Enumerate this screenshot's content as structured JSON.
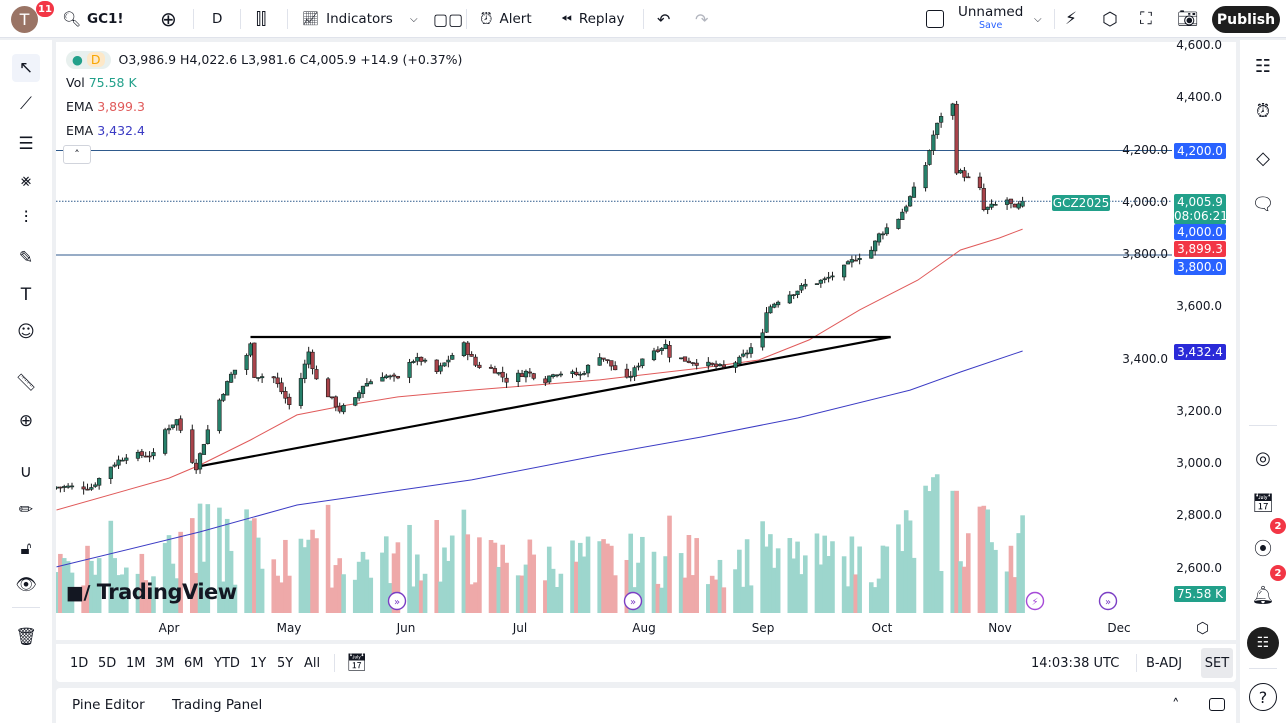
{
  "topbar": {
    "avatar_letter": "T",
    "avatar_badge": "11",
    "symbol": "GC1!",
    "interval": "D",
    "indicators_label": "Indicators",
    "alert_label": "Alert",
    "replay_label": "Replay",
    "layout_name": "Unnamed",
    "save_label": "Save",
    "publish_label": "Publish"
  },
  "legend": {
    "interval": "D",
    "ohlc": "O3,986.9 H4,022.6 L3,981.6 C4,005.9 +14.9 (+0.37%)",
    "vol_label": "Vol",
    "vol_value": "75.58 K",
    "ema1_label": "EMA",
    "ema1_value": "3,899.3",
    "ema2_label": "EMA",
    "ema2_value": "3,432.4"
  },
  "colors": {
    "up": "#26806a",
    "down": "#a8434a",
    "vol_up": "#9dd6cd",
    "vol_down": "#eea9a9",
    "ema_fast": "#e05a5a",
    "ema_slow": "#3b3bc4",
    "hline": "#2f5a8c",
    "accent_blue": "#2962ff",
    "price_teal": "#22a08a"
  },
  "price_axis": {
    "ticks": [
      "4,600.0",
      "4,400.0",
      "4,200.0",
      "4,000.0",
      "3,800.0",
      "3,600.0",
      "3,400.0",
      "3,200.0",
      "3,000.0",
      "2,800.0",
      "2,600.0"
    ],
    "labels": {
      "symbol_tag": "GCZ2025",
      "last_price": "4,005.9",
      "countdown": "08:06:21",
      "level_4200": "4,200.0",
      "level_4000": "4,000.0",
      "ema_fast": "3,899.3",
      "level_3800": "3,800.0",
      "ema_slow": "3,432.4",
      "volume": "75.58 K"
    }
  },
  "time_axis": {
    "months": [
      "Apr",
      "May",
      "Jun",
      "Jul",
      "Aug",
      "Sep",
      "Oct",
      "Nov",
      "Dec"
    ]
  },
  "chart_data": {
    "type": "candlestick",
    "symbol": "GC1!",
    "last_candle": {
      "open": 3986.9,
      "high": 4022.6,
      "low": 3981.6,
      "close": 4005.9
    },
    "close_path": [
      [
        "2025-03-03",
        2912
      ],
      [
        "2025-03-12",
        2912
      ],
      [
        "2025-03-17",
        2992
      ],
      [
        "2025-03-21",
        3034
      ],
      [
        "2025-03-28",
        3034
      ],
      [
        "2025-03-31",
        3130
      ],
      [
        "2025-04-03",
        3168
      ],
      [
        "2025-04-07",
        3015
      ],
      [
        "2025-04-08",
        2989
      ],
      [
        "2025-04-11",
        3130
      ],
      [
        "2025-04-14",
        3245
      ],
      [
        "2025-04-17",
        3341
      ],
      [
        "2025-04-21",
        3417
      ],
      [
        "2025-04-22",
        3455
      ],
      [
        "2025-04-23",
        3341
      ],
      [
        "2025-04-28",
        3329
      ],
      [
        "2025-05-02",
        3226
      ],
      [
        "2025-05-05",
        3329
      ],
      [
        "2025-05-07",
        3429
      ],
      [
        "2025-05-09",
        3322
      ],
      [
        "2025-05-13",
        3245
      ],
      [
        "2025-05-15",
        3207
      ],
      [
        "2025-05-19",
        3245
      ],
      [
        "2025-05-21",
        3302
      ],
      [
        "2025-05-26",
        3341
      ],
      [
        "2025-05-30",
        3322
      ],
      [
        "2025-06-02",
        3398
      ],
      [
        "2025-06-05",
        3398
      ],
      [
        "2025-06-09",
        3352
      ],
      [
        "2025-06-13",
        3417
      ],
      [
        "2025-06-16",
        3455
      ],
      [
        "2025-06-19",
        3379
      ],
      [
        "2025-06-24",
        3360
      ],
      [
        "2025-06-27",
        3321
      ],
      [
        "2025-07-02",
        3352
      ],
      [
        "2025-07-07",
        3321
      ],
      [
        "2025-07-09",
        3352
      ],
      [
        "2025-07-16",
        3341
      ],
      [
        "2025-07-21",
        3417
      ],
      [
        "2025-07-23",
        3390
      ],
      [
        "2025-07-28",
        3321
      ],
      [
        "2025-07-30",
        3360
      ],
      [
        "2025-08-01",
        3406
      ],
      [
        "2025-08-04",
        3436
      ],
      [
        "2025-08-07",
        3455
      ],
      [
        "2025-08-08",
        3417
      ],
      [
        "2025-08-12",
        3398
      ],
      [
        "2025-08-18",
        3379
      ],
      [
        "2025-08-22",
        3367
      ],
      [
        "2025-08-26",
        3398
      ],
      [
        "2025-08-29",
        3444
      ],
      [
        "2025-09-01",
        3494
      ],
      [
        "2025-09-02",
        3590
      ],
      [
        "2025-09-05",
        3628
      ],
      [
        "2025-09-10",
        3666
      ],
      [
        "2025-09-12",
        3685
      ],
      [
        "2025-09-17",
        3704
      ],
      [
        "2025-09-22",
        3750
      ],
      [
        "2025-09-25",
        3789
      ],
      [
        "2025-09-29",
        3819
      ],
      [
        "2025-10-01",
        3877
      ],
      [
        "2025-10-06",
        3942
      ],
      [
        "2025-10-08",
        3991
      ],
      [
        "2025-10-10",
        4049
      ],
      [
        "2025-10-13",
        4145
      ],
      [
        "2025-10-15",
        4259
      ],
      [
        "2025-10-17",
        4336
      ],
      [
        "2025-10-20",
        4374
      ],
      [
        "2025-10-21",
        4125
      ],
      [
        "2025-10-23",
        4106
      ],
      [
        "2025-10-27",
        4049
      ],
      [
        "2025-10-28",
        3972
      ],
      [
        "2025-10-31",
        3991
      ],
      [
        "2025-11-03",
        4011
      ],
      [
        "2025-11-05",
        3972
      ],
      [
        "2025-11-07",
        4005.9
      ]
    ],
    "ema_fast": [
      [
        "2025-03-03",
        2824
      ],
      [
        "2025-04-01",
        2946
      ],
      [
        "2025-04-09",
        2996
      ],
      [
        "2025-04-22",
        3092
      ],
      [
        "2025-05-04",
        3188
      ],
      [
        "2025-05-17",
        3226
      ],
      [
        "2025-05-30",
        3257
      ],
      [
        "2025-06-18",
        3283
      ],
      [
        "2025-07-21",
        3322
      ],
      [
        "2025-08-16",
        3367
      ],
      [
        "2025-08-31",
        3398
      ],
      [
        "2025-09-13",
        3475
      ],
      [
        "2025-09-26",
        3590
      ],
      [
        "2025-10-11",
        3704
      ],
      [
        "2025-10-22",
        3819
      ],
      [
        "2025-11-01",
        3865
      ],
      [
        "2025-11-07",
        3899.3
      ]
    ],
    "ema_slow": [
      [
        "2025-03-03",
        2606
      ],
      [
        "2025-04-09",
        2740
      ],
      [
        "2025-05-04",
        2843
      ],
      [
        "2025-06-18",
        2939
      ],
      [
        "2025-07-21",
        3034
      ],
      [
        "2025-08-16",
        3103
      ],
      [
        "2025-09-10",
        3176
      ],
      [
        "2025-10-09",
        3283
      ],
      [
        "2025-10-22",
        3352
      ],
      [
        "2025-11-07",
        3432.4
      ]
    ],
    "horizontal_levels": [
      4200,
      3800
    ],
    "drawings": {
      "resistance": {
        "from": [
          "2025-04-22",
          3486
        ],
        "to": [
          "2025-10-04",
          3486
        ]
      },
      "support": {
        "from": [
          "2025-04-08",
          2989
        ],
        "to": [
          "2025-10-04",
          3486
        ]
      }
    },
    "ylim": [
      2550,
      4620
    ]
  },
  "range_bar": {
    "ranges": [
      "1D",
      "5D",
      "1M",
      "3M",
      "6M",
      "YTD",
      "1Y",
      "5Y",
      "All"
    ],
    "clock": "14:03:38 UTC",
    "badj": "B-ADJ",
    "set": "SET"
  },
  "bottom_panel": {
    "tabs": [
      "Pine Editor",
      "Trading Panel"
    ]
  },
  "watermark": "TradingView",
  "rightbar": {
    "alerts_badge": "2",
    "notifications_badge": "2"
  }
}
